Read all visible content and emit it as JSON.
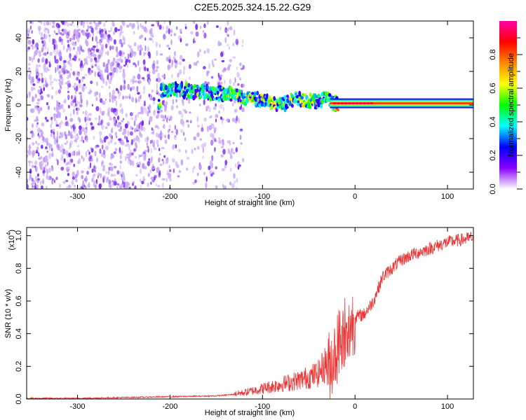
{
  "title": "C2E5.2025.324.15.22.G29",
  "chart_data": [
    {
      "type": "heatmap",
      "name": "spectrogram",
      "xlabel": "Height of straight line (km)",
      "ylabel": "Frequency (Hz)",
      "xlim": [
        -355,
        128
      ],
      "ylim": [
        -50,
        50
      ],
      "xticks": [
        -300,
        -200,
        -100,
        0,
        100
      ],
      "xtick_labels": [
        "-300",
        "-200",
        "-100",
        "0",
        "100"
      ],
      "yticks": [
        -40,
        -20,
        0,
        20,
        40
      ],
      "ytick_labels": [
        "-40",
        "-20",
        "0",
        "20",
        "40"
      ],
      "colorbar": {
        "label": "Normalized spectral amplitude",
        "range": [
          0,
          1
        ],
        "ticks": [
          0.0,
          0.2,
          0.4,
          0.6,
          0.8
        ],
        "tick_labels": [
          "0.0",
          "0.2",
          "0.4",
          "0.6",
          "0.8"
        ],
        "colormap": [
          "#ffffff",
          "#8800ff",
          "#0000ff",
          "#00ffff",
          "#00ff00",
          "#ffff00",
          "#ff8800",
          "#ff0000",
          "#ff00aa"
        ]
      },
      "ridge": [
        {
          "x": -210,
          "f": 8,
          "amp": 0.35
        },
        {
          "x": -190,
          "f": 9,
          "amp": 0.4
        },
        {
          "x": -170,
          "f": 8,
          "amp": 0.45
        },
        {
          "x": -150,
          "f": 7,
          "amp": 0.45
        },
        {
          "x": -130,
          "f": 6,
          "amp": 0.5
        },
        {
          "x": -110,
          "f": 4,
          "amp": 0.55
        },
        {
          "x": -95,
          "f": 2,
          "amp": 0.55
        },
        {
          "x": -80,
          "f": 0,
          "amp": 0.5
        },
        {
          "x": -60,
          "f": 4,
          "amp": 0.55
        },
        {
          "x": -45,
          "f": 2,
          "amp": 0.5
        },
        {
          "x": -30,
          "f": 4,
          "amp": 0.4
        },
        {
          "x": -25,
          "f": 1,
          "amp": 0.5
        },
        {
          "x": -15,
          "f": 1,
          "amp": 0.9
        },
        {
          "x": 0,
          "f": 1,
          "amp": 0.7
        },
        {
          "x": 30,
          "f": 1,
          "amp": 0.6
        },
        {
          "x": 60,
          "f": 1,
          "amp": 0.6
        },
        {
          "x": 90,
          "f": 1,
          "amp": 0.6
        },
        {
          "x": 128,
          "f": 1,
          "amp": 0.6
        }
      ]
    },
    {
      "type": "line",
      "name": "snr",
      "xlabel": "Height of straight line (km)",
      "ylabel": "SNR (10 * v/v)",
      "yscale_label": "(x10",
      "yscale_exp": "4",
      "color": "#ee3333",
      "xlim": [
        -355,
        128
      ],
      "ylim": [
        0,
        1.05
      ],
      "xticks": [
        -300,
        -200,
        -100,
        0,
        100
      ],
      "xtick_labels": [
        "-300",
        "-200",
        "-100",
        "0",
        "100"
      ],
      "yticks": [
        0.0,
        0.2,
        0.4,
        0.6,
        0.8,
        1.0
      ],
      "ytick_labels": [
        "0.0",
        "0.2",
        "0.4",
        "0.6",
        "0.8",
        "1.0"
      ],
      "series": [
        {
          "name": "SNR",
          "x": [
            -355,
            -300,
            -250,
            -200,
            -150,
            -120,
            -100,
            -80,
            -60,
            -40,
            -30,
            -20,
            -15,
            -10,
            -5,
            0,
            10,
            20,
            30,
            40,
            50,
            60,
            70,
            80,
            90,
            100,
            110,
            120,
            128
          ],
          "y": [
            0.0,
            0.0,
            0.005,
            0.01,
            0.015,
            0.03,
            0.05,
            0.07,
            0.09,
            0.12,
            0.18,
            0.3,
            0.4,
            0.3,
            0.45,
            0.5,
            0.52,
            0.6,
            0.75,
            0.8,
            0.85,
            0.88,
            0.9,
            0.92,
            0.94,
            0.96,
            0.97,
            0.98,
            0.99
          ]
        }
      ]
    }
  ]
}
